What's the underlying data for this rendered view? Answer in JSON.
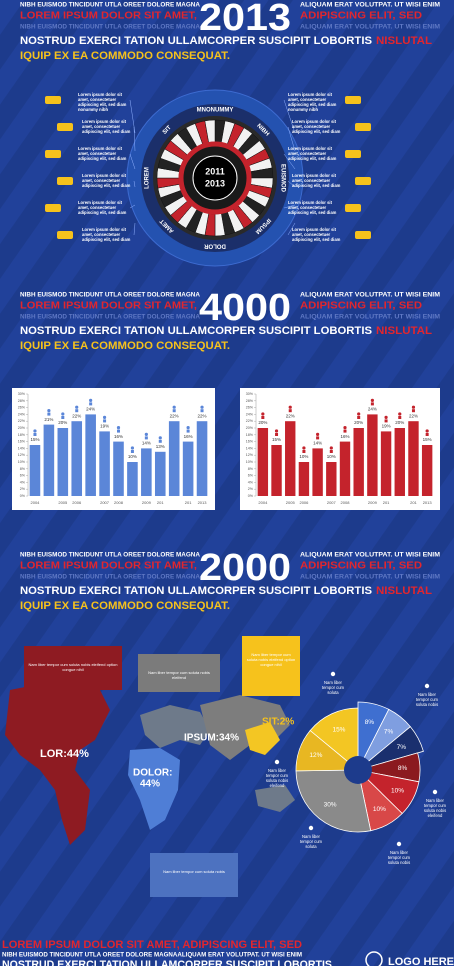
{
  "headers": [
    {
      "top_left": "NIBH EUISMOD TINCIDUNT UTLA OREET DOLORE MAGNA",
      "number": "2013",
      "top_right": "ALIQUAM ERAT VOLUTPAT. UT WISI ENIM",
      "red_left": "LOREM IPSUM DOLOR SIT AMET,",
      "red_right": "ADIPISCING ELIT, SED",
      "faint_left": "NIBH EUISMOD TINCIDUNT UTLA OREET DOLORE MAGNA",
      "faint_right": "ALIQUAM ERAT VOLUTPAT. UT WISI ENIM",
      "white": "NOSTRUD EXERCI TATION ULLAMCORPER SUSCIPIT LOBORTIS",
      "white_red": "NISLUTAL",
      "yellow": "IQUIP EX EA COMMODO CONSEQUAT."
    },
    {
      "top_left": "NIBH EUISMOD TINCIDUNT UTLA OREET DOLORE MAGNA",
      "number": "4000",
      "top_right": "ALIQUAM ERAT VOLUTPAT. UT WISI ENIM",
      "red_left": "LOREM IPSUM DOLOR SIT AMET,",
      "red_right": "ADIPISCING ELIT, SED",
      "faint_left": "NIBH EUISMOD TINCIDUNT UTLA OREET DOLORE MAGNA",
      "faint_right": "ALIQUAM ERAT VOLUTPAT. UT WISI ENIM",
      "white": "NOSTRUD EXERCI TATION ULLAMCORPER SUSCIPIT LOBORTIS",
      "white_red": "NISLUTAL",
      "yellow": "IQUIP EX EA COMMODO CONSEQUAT."
    },
    {
      "top_left": "NIBH EUISMOD TINCIDUNT UTLA OREET DOLORE MAGNA",
      "number": "2000",
      "top_right": "ALIQUAM ERAT VOLUTPAT. UT WISI ENIM",
      "red_left": "LOREM IPSUM DOLOR SIT AMET,",
      "red_right": "ADIPISCING ELIT, SED",
      "faint_left": "NIBH EUISMOD TINCIDUNT UTLA OREET DOLORE MAGNA",
      "faint_right": "ALIQUAM ERAT VOLUTPAT. UT WISI ENIM",
      "white": "NOSTRUD EXERCI TATION ULLAMCORPER SUSCIPIT LOBORTIS",
      "white_red": "NISLUTAL",
      "yellow": "IQUIP EX EA COMMODO CONSEQUAT."
    }
  ],
  "diagram": {
    "center": [
      "2011",
      "2013"
    ],
    "ring_labels": [
      "MNONUMMY",
      "NIBH",
      "EUISMOD",
      "IPSUM",
      "DOLOR",
      "AMET",
      "LOREM",
      "SIT"
    ],
    "callouts": [
      "Lorem ipsum dolor sit amet, consectetuer adipiscing elit, sed diam nonummy nibh",
      "Lorem ipsum dolor sit amet, consectetuer adipiscing elit, sed diam",
      "Lorem ipsum dolor sit amet, consectetuer adipiscing elit, sed diam",
      "Lorem ipsum dolor sit amet, consectetuer adipiscing elit, sed diam",
      "Lorem ipsum dolor sit amet, consectetuer adipiscing elit, sed diam",
      "Lorem ipsum dolor sit amet, consectetuer adipiscing elit, sed diam",
      "Lorem ipsum dolor sit amet, consectetuer adipiscing elit, sed diam nonummy nibh",
      "Lorem ipsum dolor sit amet, consectetuer adipiscing elit, sed diam",
      "Lorem ipsum dolor sit amet, consectetuer adipiscing elit, sed diam",
      "Lorem ipsum dolor sit amet, consectetuer adipiscing elit, sed diam",
      "Lorem ipsum dolor sit amet, consectetuer adipiscing elit, sed diam",
      "Lorem ipsum dolor sit amet, consectetuer adipiscing elit, sed diam"
    ]
  },
  "bar_charts": [
    {
      "type": "bar",
      "color": "#5b86d8",
      "categories": [
        "2004",
        null,
        "2005",
        "2006",
        null,
        "2007",
        "2008",
        null,
        "2009",
        "201",
        null,
        "201",
        "2013"
      ],
      "values": [
        15,
        21,
        20,
        22,
        24,
        19,
        16,
        10,
        14,
        13,
        22,
        16,
        22
      ],
      "value_labels": [
        "15%",
        "21%",
        "20%",
        "22%",
        "24%",
        "19%",
        "16%",
        "10%",
        "14%",
        "13%",
        "22%",
        "16%",
        "22%"
      ],
      "ylim": [
        0,
        30
      ],
      "yticks": [
        {
          "value": 0,
          "label": "0%"
        },
        {
          "value": 2,
          "label": "2%"
        },
        {
          "value": 4,
          "label": "4%"
        },
        {
          "value": 6,
          "label": "6%"
        },
        {
          "value": 8,
          "label": "8%"
        },
        {
          "value": 10,
          "label": "10%"
        },
        {
          "value": 12,
          "label": "12%"
        },
        {
          "value": 14,
          "label": "14%"
        },
        {
          "value": 16,
          "label": "16%"
        },
        {
          "value": 18,
          "label": "18%"
        },
        {
          "value": 20,
          "label": "20%"
        },
        {
          "value": 22,
          "label": "22%"
        },
        {
          "value": 24,
          "label": "24%"
        },
        {
          "value": 26,
          "label": "26%"
        },
        {
          "value": 28,
          "label": "28%"
        },
        {
          "value": 30,
          "label": "30%"
        }
      ]
    },
    {
      "type": "bar",
      "color": "#c4232c",
      "categories": [
        "2004",
        null,
        "2005",
        "2006",
        null,
        "2007",
        "2008",
        null,
        "2009",
        "201",
        null,
        "201",
        "2013"
      ],
      "values": [
        20,
        15,
        22,
        10,
        14,
        10,
        16,
        20,
        24,
        19,
        20,
        22,
        15
      ],
      "value_labels": [
        "20%",
        "15%",
        "22%",
        "10%",
        "14%",
        "10%",
        "16%",
        "20%",
        "24%",
        "19%",
        "20%",
        "22%",
        "15%"
      ],
      "ylim": [
        0,
        30
      ],
      "yticks": [
        {
          "value": 0,
          "label": "0%"
        },
        {
          "value": 2,
          "label": "2%"
        },
        {
          "value": 4,
          "label": "4%"
        },
        {
          "value": 6,
          "label": "6%"
        },
        {
          "value": 8,
          "label": "8%"
        },
        {
          "value": 10,
          "label": "10%"
        },
        {
          "value": 12,
          "label": "12%"
        },
        {
          "value": 14,
          "label": "14%"
        },
        {
          "value": 16,
          "label": "16%"
        },
        {
          "value": 18,
          "label": "18%"
        },
        {
          "value": 20,
          "label": "20%"
        },
        {
          "value": 22,
          "label": "22%"
        },
        {
          "value": 24,
          "label": "24%"
        },
        {
          "value": 26,
          "label": "26%"
        },
        {
          "value": 28,
          "label": "28%"
        },
        {
          "value": 30,
          "label": "30%"
        }
      ]
    }
  ],
  "map": {
    "labels": [
      "LOR:44%",
      "DOLOR:",
      "44%",
      "IPSUM:34%",
      "SIT:2%"
    ],
    "boxes": [
      "Nam liber tempor cum soluta nobis eleifend option congue nihil",
      "Nam liber tempor cum soluta nobis eleifend",
      "Nam liber tempor cum soluta nobis eleifend option congue nihil",
      "Nam liber tempor cum soluta nobis"
    ]
  },
  "pie": {
    "type": "pie",
    "values": [
      8,
      7,
      7,
      8,
      10,
      10,
      30,
      12,
      15
    ],
    "value_labels": [
      "8%",
      "7%",
      "7%",
      "8%",
      "10%",
      "10%",
      "30%",
      "12%",
      "15%"
    ],
    "colors": [
      "#3f6fd0",
      "#7f9ee0",
      "#1a2f6e",
      "#8b1a1f",
      "#c4232c",
      "#d84848",
      "#8a8a8a",
      "#e8b722",
      "#f3c623"
    ],
    "notes": [
      "Nam liber tempor cum soluta",
      "Nam liber tempor cum soluta nobis",
      "Nam liber tempor cum soluta nobis eleifend",
      "Nam liber tempor cum soluta",
      "Nam liber tempor cum soluta nobis",
      "Nam liber tempor cum soluta nobis eleifend"
    ]
  },
  "footer": {
    "red": "LOREM IPSUM DOLOR SIT AMET, ADIPISCING ELIT, SED",
    "small": "NIBH EUISMOD TINCIDUNT UTLA OREET DOLORE MAGNAALIQUAM ERAT VOLUTPAT. UT WISI ENIM",
    "white": "NOSTRUD EXERCI TATION ULLAMCORPER SUSCIPIT LOBORTIS",
    "logo": "LOGO HERE"
  }
}
